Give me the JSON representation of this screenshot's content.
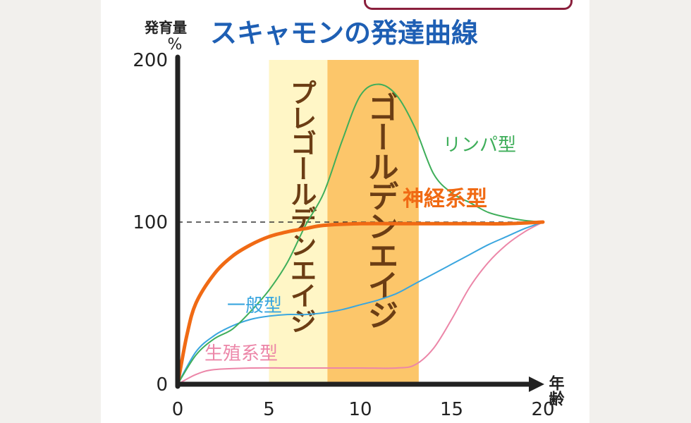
{
  "chart_data": {
    "type": "line",
    "title": "スキャモンの発達曲線",
    "ylabel_top": "発育量",
    "ylabel_unit": "%",
    "xlabel": "年齢",
    "xlim": [
      0,
      20
    ],
    "ylim": [
      0,
      200
    ],
    "x_ticks": [
      "0",
      "5",
      "10",
      "15",
      "20"
    ],
    "y_ticks": [
      "0",
      "100",
      "200"
    ],
    "reference_line": {
      "y": 100,
      "style": "dashed"
    },
    "bands": [
      {
        "label": "プレゴールデンエイジ",
        "x": [
          5,
          8.2
        ],
        "color": "#fff6c6"
      },
      {
        "label": "ゴールデンエイジ",
        "x": [
          8.2,
          13.2
        ],
        "color": "#fcc66a"
      }
    ],
    "series": [
      {
        "name": "リンパ型",
        "color": "#3fae5a",
        "points": [
          [
            0,
            0
          ],
          [
            1,
            18
          ],
          [
            2,
            28
          ],
          [
            3,
            34
          ],
          [
            4,
            45
          ],
          [
            5,
            58
          ],
          [
            6,
            75
          ],
          [
            7,
            98
          ],
          [
            8,
            118
          ],
          [
            9,
            150
          ],
          [
            10,
            178
          ],
          [
            11,
            185
          ],
          [
            12,
            178
          ],
          [
            13,
            158
          ],
          [
            14,
            130
          ],
          [
            15,
            118
          ],
          [
            16,
            112
          ],
          [
            17,
            106
          ],
          [
            18,
            103
          ],
          [
            19,
            101
          ],
          [
            20,
            100
          ]
        ]
      },
      {
        "name": "神経系型",
        "color": "#f06a14",
        "points": [
          [
            0,
            0
          ],
          [
            0.5,
            30
          ],
          [
            1,
            50
          ],
          [
            2,
            68
          ],
          [
            3,
            79
          ],
          [
            4,
            86
          ],
          [
            5,
            91
          ],
          [
            6,
            94
          ],
          [
            7,
            96
          ],
          [
            8,
            98
          ],
          [
            10,
            99
          ],
          [
            13,
            99
          ],
          [
            16,
            99
          ],
          [
            18,
            99
          ],
          [
            20,
            100
          ]
        ]
      },
      {
        "name": "一般型",
        "color": "#3aa6df",
        "points": [
          [
            0,
            0
          ],
          [
            1,
            20
          ],
          [
            2,
            30
          ],
          [
            3,
            36
          ],
          [
            4,
            40
          ],
          [
            5,
            42
          ],
          [
            6,
            43
          ],
          [
            7,
            43
          ],
          [
            8,
            44
          ],
          [
            9,
            46
          ],
          [
            10,
            49
          ],
          [
            11,
            52
          ],
          [
            12,
            56
          ],
          [
            13,
            62
          ],
          [
            14,
            68
          ],
          [
            15,
            74
          ],
          [
            16,
            80
          ],
          [
            17,
            86
          ],
          [
            18,
            91
          ],
          [
            19,
            96
          ],
          [
            20,
            100
          ]
        ]
      },
      {
        "name": "生殖系型",
        "color": "#ec86a8",
        "points": [
          [
            0,
            0
          ],
          [
            1,
            6
          ],
          [
            2,
            9
          ],
          [
            4,
            10
          ],
          [
            6,
            10
          ],
          [
            8,
            10
          ],
          [
            10,
            10
          ],
          [
            12,
            10
          ],
          [
            13,
            12
          ],
          [
            14,
            22
          ],
          [
            15,
            40
          ],
          [
            16,
            60
          ],
          [
            17,
            75
          ],
          [
            18,
            86
          ],
          [
            19,
            94
          ],
          [
            20,
            100
          ]
        ]
      }
    ]
  }
}
